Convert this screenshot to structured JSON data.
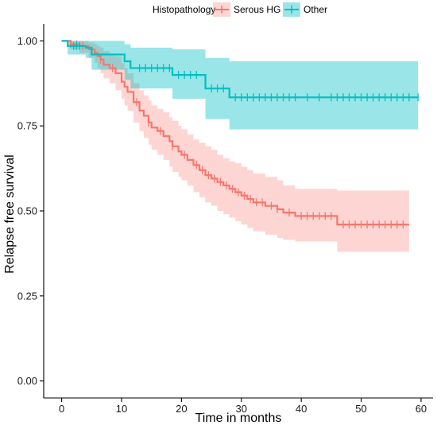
{
  "chart_data": {
    "type": "line",
    "subtype": "kaplan-meier",
    "xlabel": "Time in months",
    "ylabel": "Relapse free survival",
    "xlim": [
      -3,
      62
    ],
    "ylim": [
      -0.05,
      1.05
    ],
    "x_ticks": [
      0,
      10,
      20,
      30,
      40,
      50,
      60
    ],
    "x_tick_labels": [
      "0",
      "10",
      "20",
      "30",
      "40",
      "50",
      "60"
    ],
    "y_ticks": [
      0.0,
      0.25,
      0.5,
      0.75,
      1.0
    ],
    "y_tick_labels": [
      "0.00",
      "0.25",
      "0.50",
      "0.75",
      "1.00"
    ],
    "grid": false,
    "legend": {
      "title": "Histopathology",
      "position": "top",
      "entries": [
        "Serous HG",
        "Other"
      ]
    },
    "series": [
      {
        "name": "Serous HG",
        "color": "#F8766D",
        "band_color": "#F8766D",
        "steps": [
          [
            0,
            1.0
          ],
          [
            1.5,
            0.99
          ],
          [
            3,
            0.985
          ],
          [
            4.5,
            0.975
          ],
          [
            5.5,
            0.965
          ],
          [
            6,
            0.955
          ],
          [
            6.5,
            0.945
          ],
          [
            7,
            0.93
          ],
          [
            8,
            0.92
          ],
          [
            9,
            0.905
          ],
          [
            10,
            0.88
          ],
          [
            10.5,
            0.865
          ],
          [
            11,
            0.85
          ],
          [
            12,
            0.82
          ],
          [
            13,
            0.795
          ],
          [
            13.7,
            0.78
          ],
          [
            14.5,
            0.76
          ],
          [
            15,
            0.745
          ],
          [
            16,
            0.735
          ],
          [
            17,
            0.72
          ],
          [
            18,
            0.705
          ],
          [
            18.5,
            0.69
          ],
          [
            19.5,
            0.675
          ],
          [
            20,
            0.665
          ],
          [
            21,
            0.65
          ],
          [
            22,
            0.635
          ],
          [
            23,
            0.62
          ],
          [
            24,
            0.605
          ],
          [
            25,
            0.595
          ],
          [
            26,
            0.585
          ],
          [
            27,
            0.575
          ],
          [
            28,
            0.565
          ],
          [
            29,
            0.555
          ],
          [
            30,
            0.545
          ],
          [
            31,
            0.535
          ],
          [
            32,
            0.525
          ],
          [
            34,
            0.515
          ],
          [
            36,
            0.505
          ],
          [
            37,
            0.495
          ],
          [
            39,
            0.485
          ],
          [
            46,
            0.46
          ],
          [
            58,
            0.46
          ]
        ],
        "lower": [
          [
            0,
            1.0
          ],
          [
            1.5,
            0.975
          ],
          [
            3,
            0.965
          ],
          [
            4.5,
            0.95
          ],
          [
            5.5,
            0.935
          ],
          [
            6,
            0.92
          ],
          [
            6.5,
            0.905
          ],
          [
            7,
            0.89
          ],
          [
            8,
            0.875
          ],
          [
            9,
            0.855
          ],
          [
            10,
            0.83
          ],
          [
            10.5,
            0.81
          ],
          [
            11,
            0.795
          ],
          [
            12,
            0.76
          ],
          [
            13,
            0.735
          ],
          [
            13.7,
            0.715
          ],
          [
            14.5,
            0.695
          ],
          [
            15,
            0.68
          ],
          [
            16,
            0.665
          ],
          [
            17,
            0.65
          ],
          [
            18,
            0.63
          ],
          [
            18.5,
            0.615
          ],
          [
            19.5,
            0.6
          ],
          [
            20,
            0.59
          ],
          [
            21,
            0.575
          ],
          [
            22,
            0.555
          ],
          [
            23,
            0.54
          ],
          [
            24,
            0.525
          ],
          [
            25,
            0.515
          ],
          [
            26,
            0.5
          ],
          [
            27,
            0.49
          ],
          [
            28,
            0.48
          ],
          [
            29,
            0.47
          ],
          [
            30,
            0.46
          ],
          [
            31,
            0.45
          ],
          [
            32,
            0.44
          ],
          [
            34,
            0.43
          ],
          [
            36,
            0.42
          ],
          [
            37,
            0.415
          ],
          [
            39,
            0.41
          ],
          [
            46,
            0.38
          ],
          [
            58,
            0.38
          ]
        ],
        "upper": [
          [
            0,
            1.0
          ],
          [
            1.5,
            1.0
          ],
          [
            3,
            1.0
          ],
          [
            4.5,
            0.995
          ],
          [
            5.5,
            0.99
          ],
          [
            6,
            0.985
          ],
          [
            6.5,
            0.98
          ],
          [
            7,
            0.97
          ],
          [
            8,
            0.96
          ],
          [
            9,
            0.955
          ],
          [
            10,
            0.935
          ],
          [
            10.5,
            0.92
          ],
          [
            11,
            0.905
          ],
          [
            12,
            0.875
          ],
          [
            13,
            0.855
          ],
          [
            13.7,
            0.84
          ],
          [
            14.5,
            0.825
          ],
          [
            15,
            0.81
          ],
          [
            16,
            0.8
          ],
          [
            17,
            0.79
          ],
          [
            18,
            0.775
          ],
          [
            18.5,
            0.765
          ],
          [
            19.5,
            0.75
          ],
          [
            20,
            0.74
          ],
          [
            21,
            0.725
          ],
          [
            22,
            0.71
          ],
          [
            23,
            0.7
          ],
          [
            24,
            0.69
          ],
          [
            25,
            0.68
          ],
          [
            26,
            0.665
          ],
          [
            27,
            0.655
          ],
          [
            28,
            0.645
          ],
          [
            29,
            0.64
          ],
          [
            30,
            0.63
          ],
          [
            31,
            0.62
          ],
          [
            32,
            0.61
          ],
          [
            34,
            0.6
          ],
          [
            36,
            0.59
          ],
          [
            37,
            0.575
          ],
          [
            39,
            0.565
          ],
          [
            46,
            0.56
          ],
          [
            58,
            0.56
          ]
        ],
        "censor_times": [
          1.5,
          2.5,
          3.5,
          6.5,
          8.5,
          12.5,
          14.5,
          16.5,
          18.5,
          20.5,
          22.5,
          23.5,
          24.5,
          25.5,
          26.5,
          27.5,
          28.5,
          29.5,
          30.5,
          31.5,
          32.5,
          33.5,
          35,
          36,
          38,
          40,
          41,
          42,
          43,
          44,
          45,
          47,
          48,
          49,
          50,
          51,
          52,
          53,
          54,
          55,
          56,
          57
        ]
      },
      {
        "name": "Other",
        "color": "#00BFC4",
        "band_color": "#00BFC4",
        "steps": [
          [
            0,
            1.0
          ],
          [
            1,
            0.985
          ],
          [
            4,
            0.98
          ],
          [
            5,
            0.96
          ],
          [
            10.5,
            0.94
          ],
          [
            11.5,
            0.92
          ],
          [
            18.5,
            0.9
          ],
          [
            24,
            0.86
          ],
          [
            28,
            0.834
          ],
          [
            59.5,
            0.834
          ]
        ],
        "lower": [
          [
            0,
            1.0
          ],
          [
            1,
            0.96
          ],
          [
            4,
            0.95
          ],
          [
            5,
            0.915
          ],
          [
            10.5,
            0.885
          ],
          [
            11.5,
            0.86
          ],
          [
            18.5,
            0.83
          ],
          [
            24,
            0.77
          ],
          [
            28,
            0.74
          ],
          [
            59.5,
            0.74
          ]
        ],
        "upper": [
          [
            0,
            1.0
          ],
          [
            1,
            1.0
          ],
          [
            4,
            1.0
          ],
          [
            5,
            1.0
          ],
          [
            10.5,
            0.99
          ],
          [
            11.5,
            0.98
          ],
          [
            18.5,
            0.975
          ],
          [
            24,
            0.95
          ],
          [
            28,
            0.94
          ],
          [
            59.5,
            0.94
          ]
        ],
        "censor_times": [
          2,
          2.5,
          3,
          13,
          14,
          15,
          16,
          17,
          18,
          19.5,
          20.5,
          21.5,
          22.5,
          25,
          26,
          27,
          29,
          30,
          31,
          32,
          33,
          34,
          35,
          36,
          37,
          38,
          39,
          41,
          43,
          45,
          46,
          47,
          48,
          49,
          50,
          51,
          52,
          53,
          54,
          55,
          56,
          57,
          58,
          59.5
        ]
      }
    ]
  }
}
